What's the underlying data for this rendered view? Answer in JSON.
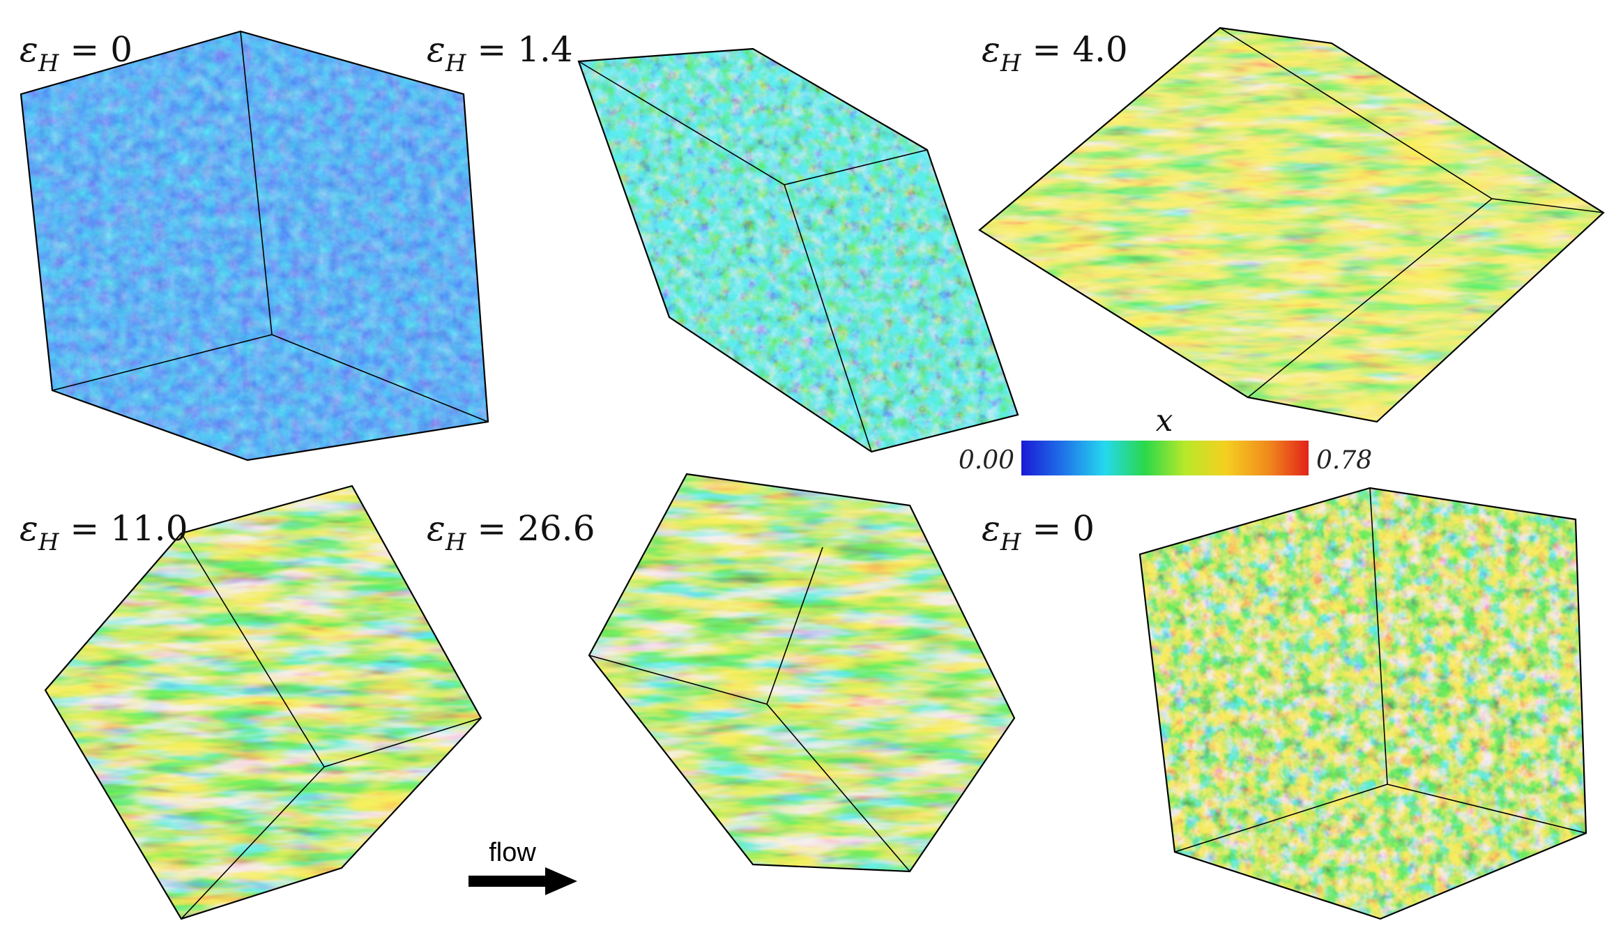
{
  "panels": [
    {
      "id": "p1",
      "label": {
        "symbol": "ε",
        "sub": "H",
        "eq": " = ",
        "value": "0"
      },
      "tone": "blue"
    },
    {
      "id": "p2",
      "label": {
        "symbol": "ε",
        "sub": "H",
        "eq": " = ",
        "value": "1.4"
      },
      "tone": "blue-green"
    },
    {
      "id": "p3",
      "label": {
        "symbol": "ε",
        "sub": "H",
        "eq": " = ",
        "value": "4.0"
      },
      "tone": "green-orange"
    },
    {
      "id": "p4",
      "label": {
        "symbol": "ε",
        "sub": "H",
        "eq": " = ",
        "value": "11.0"
      },
      "tone": "banded"
    },
    {
      "id": "p5",
      "label": {
        "symbol": "ε",
        "sub": "H",
        "eq": " = ",
        "value": "26.6"
      },
      "tone": "banded"
    },
    {
      "id": "p6",
      "label": {
        "symbol": "ε",
        "sub": "H",
        "eq": " = ",
        "value": "0"
      },
      "tone": "mixed"
    }
  ],
  "colorbar": {
    "title": "x",
    "min_label": "0.00",
    "max_label": "0.78",
    "colors": [
      "#1a1ad6",
      "#1f6fe8",
      "#25d8ee",
      "#2ad84a",
      "#b8e82a",
      "#f4d020",
      "#f08a1c",
      "#e2231a"
    ]
  },
  "flow": {
    "label": "flow",
    "direction": "right-arrow"
  }
}
